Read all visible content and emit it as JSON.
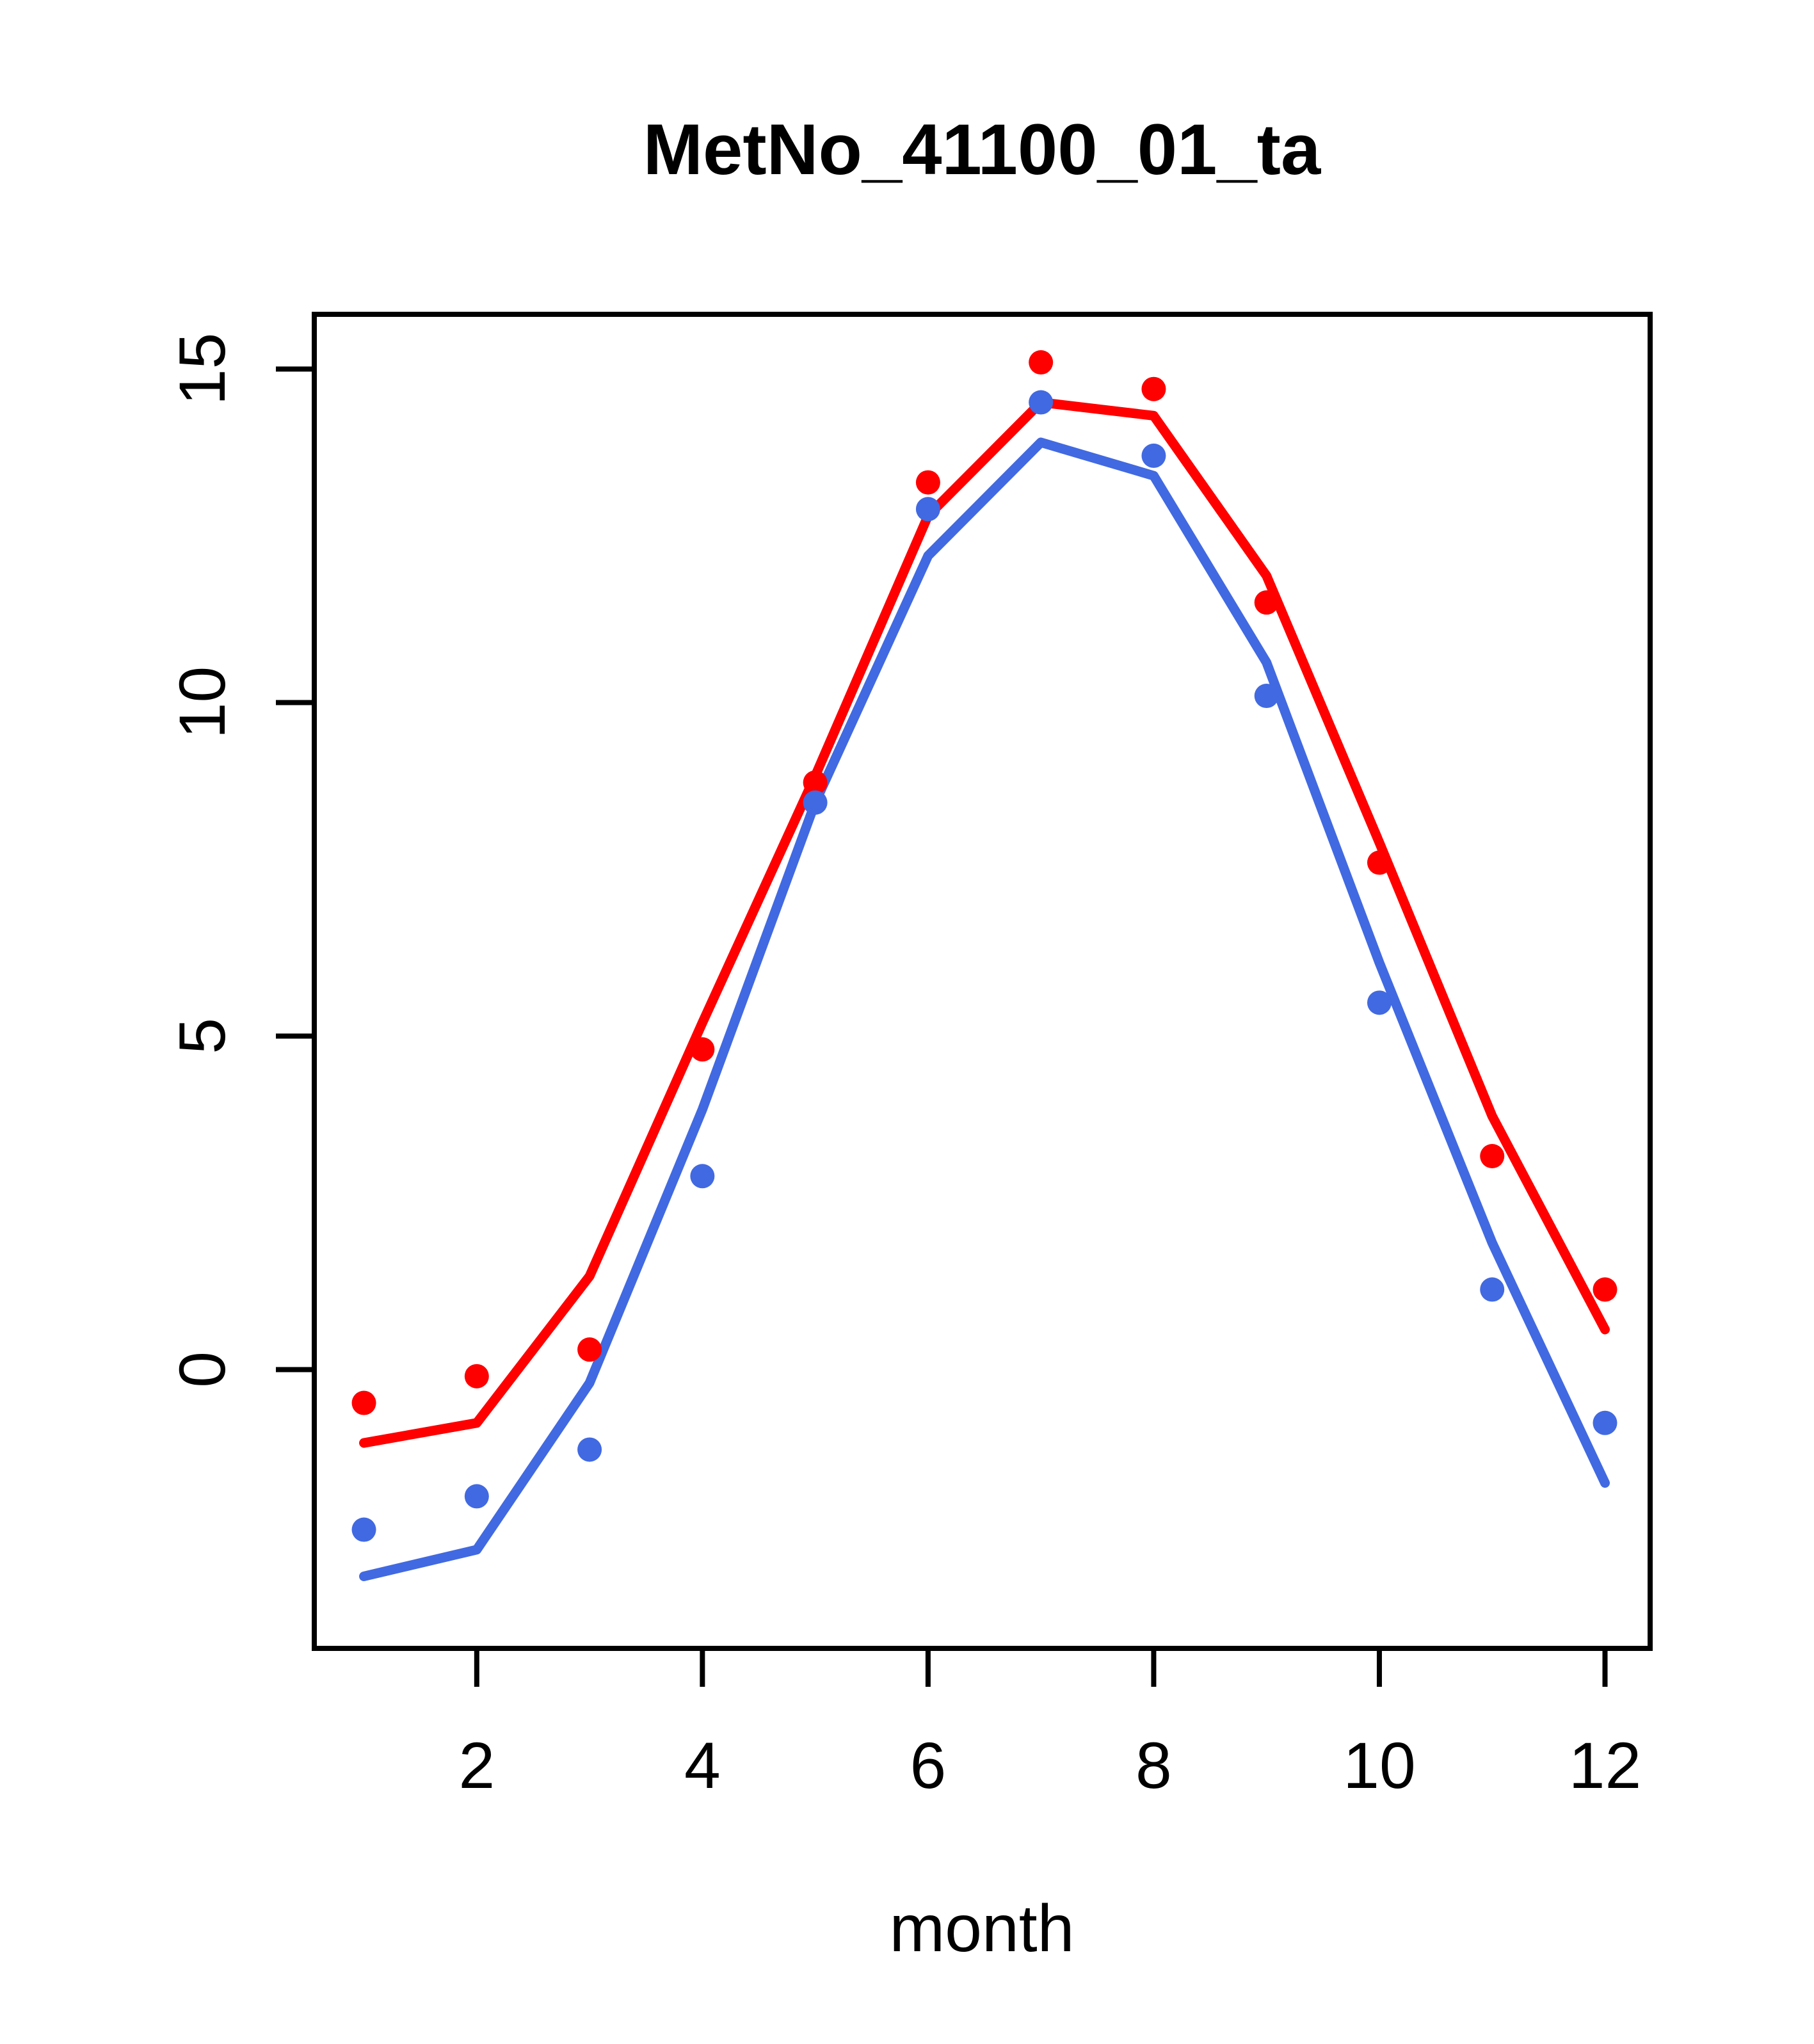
{
  "title": "MetNo_41100_01_ta",
  "colors": {
    "red": "#FF0000",
    "blue": "#4169E1",
    "axis": "#000000",
    "background": "#FFFFFF"
  },
  "chart_data": {
    "type": "line",
    "title": "MetNo_41100_01_ta",
    "xlabel": "month",
    "ylabel": "",
    "x": [
      1,
      2,
      3,
      4,
      5,
      6,
      7,
      8,
      9,
      10,
      11,
      12
    ],
    "x_ticks": [
      2,
      4,
      6,
      8,
      10,
      12
    ],
    "y_ticks": [
      0,
      5,
      10,
      15
    ],
    "xlim": [
      0.56,
      12.4
    ],
    "ylim": [
      -4.18,
      15.82
    ],
    "grid": false,
    "legend": "none",
    "series": [
      {
        "name": "red-line",
        "kind": "line",
        "color": "#FF0000",
        "values": [
          -1.1,
          -0.8,
          1.4,
          5.2,
          8.9,
          12.8,
          14.5,
          14.3,
          11.9,
          7.9,
          3.8,
          0.6
        ]
      },
      {
        "name": "blue-line",
        "kind": "line",
        "color": "#4169E1",
        "values": [
          -3.1,
          -2.7,
          -0.2,
          3.9,
          8.5,
          12.2,
          13.9,
          13.4,
          10.6,
          6.1,
          1.9,
          -1.7
        ]
      },
      {
        "name": "red-points",
        "kind": "scatter",
        "color": "#FF0000",
        "values": [
          -0.5,
          -0.1,
          0.3,
          4.8,
          8.8,
          13.3,
          15.1,
          14.7,
          11.5,
          7.6,
          3.2,
          1.2
        ]
      },
      {
        "name": "blue-points",
        "kind": "scatter",
        "color": "#4169E1",
        "values": [
          -2.4,
          -1.9,
          -1.2,
          2.9,
          8.5,
          12.9,
          14.5,
          13.7,
          10.1,
          5.5,
          1.2,
          -0.8
        ]
      }
    ]
  }
}
